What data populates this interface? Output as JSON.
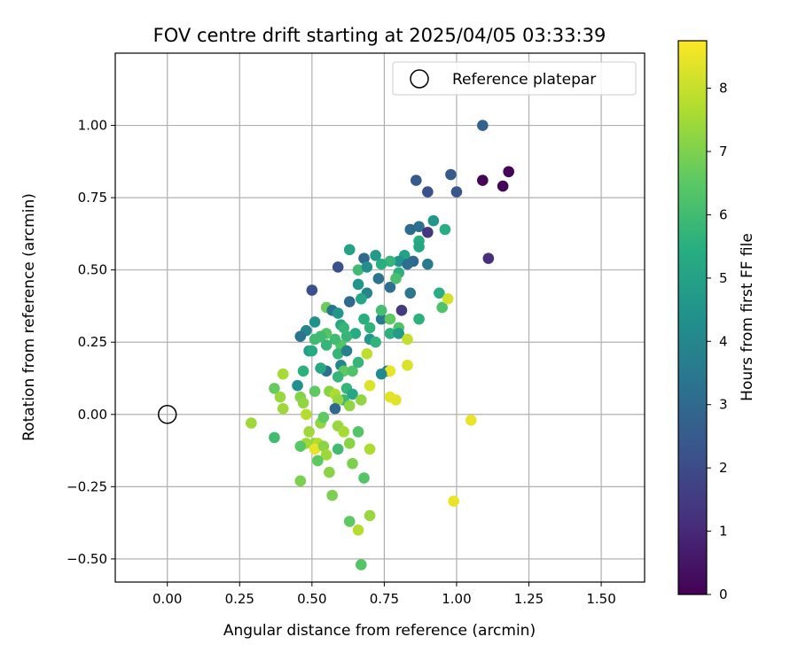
{
  "chart_data": {
    "type": "scatter",
    "title": "FOV centre drift starting at 2025/04/05 03:33:39",
    "xlabel": "Angular distance from reference (arcmin)",
    "ylabel": "Rotation from reference (arcmin)",
    "colorbar_label": "Hours from first FF file",
    "xlim": [
      -0.18,
      1.65
    ],
    "ylim": [
      -0.58,
      1.25
    ],
    "xticks": [
      "0.00",
      "0.25",
      "0.50",
      "0.75",
      "1.00",
      "1.25",
      "1.50"
    ],
    "xtick_values": [
      0,
      0.25,
      0.5,
      0.75,
      1.0,
      1.25,
      1.5
    ],
    "yticks": [
      "−0.50",
      "−0.25",
      "0.00",
      "0.25",
      "0.50",
      "0.75",
      "1.00"
    ],
    "ytick_values": [
      -0.5,
      -0.25,
      0,
      0.25,
      0.5,
      0.75,
      1.0
    ],
    "colorbar_range": [
      0,
      8.75
    ],
    "colorbar_ticks": [
      "0",
      "1",
      "2",
      "3",
      "4",
      "5",
      "6",
      "7",
      "8"
    ],
    "colorbar_tick_values": [
      0,
      1,
      2,
      3,
      4,
      5,
      6,
      7,
      8
    ],
    "colormap": "viridis",
    "grid": true,
    "legend": {
      "placement": "top-right",
      "entry": "Reference platepar"
    },
    "reference_point": {
      "x": 0.0,
      "y": 0.0
    },
    "points": [
      {
        "x": 1.09,
        "y": 1.0,
        "h": 2.8
      },
      {
        "x": 1.09,
        "y": 0.81,
        "h": 0.1
      },
      {
        "x": 1.18,
        "y": 0.84,
        "h": 0.1
      },
      {
        "x": 1.16,
        "y": 0.79,
        "h": 0.1
      },
      {
        "x": 1.11,
        "y": 0.54,
        "h": 1.2
      },
      {
        "x": 0.98,
        "y": 0.83,
        "h": 2.5
      },
      {
        "x": 0.86,
        "y": 0.81,
        "h": 2.5
      },
      {
        "x": 0.9,
        "y": 0.77,
        "h": 2.2
      },
      {
        "x": 1.0,
        "y": 0.77,
        "h": 2.4
      },
      {
        "x": 0.92,
        "y": 0.67,
        "h": 4.6
      },
      {
        "x": 0.96,
        "y": 0.64,
        "h": 5.5
      },
      {
        "x": 0.87,
        "y": 0.65,
        "h": 3.2
      },
      {
        "x": 0.84,
        "y": 0.64,
        "h": 3.1
      },
      {
        "x": 0.9,
        "y": 0.63,
        "h": 1.4
      },
      {
        "x": 0.87,
        "y": 0.6,
        "h": 5.4
      },
      {
        "x": 0.87,
        "y": 0.58,
        "h": 5.2
      },
      {
        "x": 0.82,
        "y": 0.55,
        "h": 5.0
      },
      {
        "x": 0.8,
        "y": 0.53,
        "h": 4.5
      },
      {
        "x": 0.85,
        "y": 0.53,
        "h": 3.0
      },
      {
        "x": 0.83,
        "y": 0.52,
        "h": 3.2
      },
      {
        "x": 0.9,
        "y": 0.52,
        "h": 3.6
      },
      {
        "x": 0.8,
        "y": 0.49,
        "h": 5.6
      },
      {
        "x": 0.77,
        "y": 0.53,
        "h": 5.8
      },
      {
        "x": 0.74,
        "y": 0.52,
        "h": 5.5
      },
      {
        "x": 0.72,
        "y": 0.55,
        "h": 4.8
      },
      {
        "x": 0.68,
        "y": 0.54,
        "h": 3.0
      },
      {
        "x": 0.63,
        "y": 0.57,
        "h": 5.0
      },
      {
        "x": 0.59,
        "y": 0.51,
        "h": 2.2
      },
      {
        "x": 0.66,
        "y": 0.5,
        "h": 6.0
      },
      {
        "x": 0.69,
        "y": 0.51,
        "h": 4.3
      },
      {
        "x": 0.73,
        "y": 0.47,
        "h": 3.4
      },
      {
        "x": 0.77,
        "y": 0.44,
        "h": 3.2
      },
      {
        "x": 0.79,
        "y": 0.47,
        "h": 6.2
      },
      {
        "x": 0.66,
        "y": 0.45,
        "h": 4.6
      },
      {
        "x": 0.69,
        "y": 0.42,
        "h": 4.0
      },
      {
        "x": 0.67,
        "y": 0.4,
        "h": 5.2
      },
      {
        "x": 0.63,
        "y": 0.39,
        "h": 3.0
      },
      {
        "x": 0.5,
        "y": 0.43,
        "h": 2.2
      },
      {
        "x": 0.51,
        "y": 0.32,
        "h": 4.4
      },
      {
        "x": 0.55,
        "y": 0.37,
        "h": 6.8
      },
      {
        "x": 0.57,
        "y": 0.36,
        "h": 3.4
      },
      {
        "x": 0.59,
        "y": 0.35,
        "h": 4.6
      },
      {
        "x": 0.6,
        "y": 0.31,
        "h": 5.3
      },
      {
        "x": 0.61,
        "y": 0.3,
        "h": 5.8
      },
      {
        "x": 0.68,
        "y": 0.33,
        "h": 5.5
      },
      {
        "x": 0.7,
        "y": 0.3,
        "h": 5.7
      },
      {
        "x": 0.74,
        "y": 0.33,
        "h": 3.6
      },
      {
        "x": 0.74,
        "y": 0.36,
        "h": 6.1
      },
      {
        "x": 0.77,
        "y": 0.33,
        "h": 6.6
      },
      {
        "x": 0.8,
        "y": 0.3,
        "h": 6.3
      },
      {
        "x": 0.77,
        "y": 0.28,
        "h": 5.6
      },
      {
        "x": 0.8,
        "y": 0.28,
        "h": 4.8
      },
      {
        "x": 0.81,
        "y": 0.36,
        "h": 1.5
      },
      {
        "x": 0.84,
        "y": 0.42,
        "h": 3.5
      },
      {
        "x": 0.87,
        "y": 0.33,
        "h": 5.6
      },
      {
        "x": 0.94,
        "y": 0.42,
        "h": 5.5
      },
      {
        "x": 0.95,
        "y": 0.37,
        "h": 6.3
      },
      {
        "x": 0.97,
        "y": 0.4,
        "h": 8.2
      },
      {
        "x": 0.83,
        "y": 0.26,
        "h": 8.0
      },
      {
        "x": 0.83,
        "y": 0.17,
        "h": 8.3
      },
      {
        "x": 0.76,
        "y": 0.15,
        "h": 3.6
      },
      {
        "x": 0.77,
        "y": 0.15,
        "h": 8.5
      },
      {
        "x": 0.69,
        "y": 0.21,
        "h": 7.9
      },
      {
        "x": 0.7,
        "y": 0.26,
        "h": 4.6
      },
      {
        "x": 0.72,
        "y": 0.25,
        "h": 5.7
      },
      {
        "x": 0.65,
        "y": 0.28,
        "h": 5.4
      },
      {
        "x": 0.62,
        "y": 0.27,
        "h": 5.8
      },
      {
        "x": 0.6,
        "y": 0.24,
        "h": 6.4
      },
      {
        "x": 0.58,
        "y": 0.26,
        "h": 6.0
      },
      {
        "x": 0.55,
        "y": 0.28,
        "h": 6.4
      },
      {
        "x": 0.53,
        "y": 0.27,
        "h": 6.0
      },
      {
        "x": 0.51,
        "y": 0.26,
        "h": 6.0
      },
      {
        "x": 0.48,
        "y": 0.29,
        "h": 4.0
      },
      {
        "x": 0.46,
        "y": 0.27,
        "h": 3.4
      },
      {
        "x": 0.49,
        "y": 0.22,
        "h": 4.8
      },
      {
        "x": 0.5,
        "y": 0.22,
        "h": 5.4
      },
      {
        "x": 0.55,
        "y": 0.24,
        "h": 5.8
      },
      {
        "x": 0.55,
        "y": 0.15,
        "h": 3.2
      },
      {
        "x": 0.53,
        "y": 0.16,
        "h": 5.3
      },
      {
        "x": 0.59,
        "y": 0.21,
        "h": 5.8
      },
      {
        "x": 0.6,
        "y": 0.17,
        "h": 4.0
      },
      {
        "x": 0.62,
        "y": 0.22,
        "h": 3.8
      },
      {
        "x": 0.61,
        "y": 0.15,
        "h": 6.6
      },
      {
        "x": 0.59,
        "y": 0.13,
        "h": 5.8
      },
      {
        "x": 0.64,
        "y": 0.15,
        "h": 6.3
      },
      {
        "x": 0.66,
        "y": 0.18,
        "h": 5.8
      },
      {
        "x": 0.74,
        "y": 0.14,
        "h": 4.2
      },
      {
        "x": 0.47,
        "y": 0.15,
        "h": 5.6
      },
      {
        "x": 0.45,
        "y": 0.1,
        "h": 4.4
      },
      {
        "x": 0.51,
        "y": 0.08,
        "h": 6.6
      },
      {
        "x": 0.56,
        "y": 0.08,
        "h": 7.2
      },
      {
        "x": 0.58,
        "y": 0.07,
        "h": 7.7
      },
      {
        "x": 0.62,
        "y": 0.09,
        "h": 5.8
      },
      {
        "x": 0.64,
        "y": 0.07,
        "h": 5.2
      },
      {
        "x": 0.61,
        "y": 0.05,
        "h": 5.9
      },
      {
        "x": 0.59,
        "y": 0.05,
        "h": 7.4
      },
      {
        "x": 0.58,
        "y": 0.02,
        "h": 3.0
      },
      {
        "x": 0.63,
        "y": 0.03,
        "h": 7.3
      },
      {
        "x": 0.67,
        "y": 0.05,
        "h": 7.3
      },
      {
        "x": 0.7,
        "y": 0.1,
        "h": 8.3
      },
      {
        "x": 0.77,
        "y": 0.06,
        "h": 8.4
      },
      {
        "x": 0.79,
        "y": 0.05,
        "h": 8.4
      },
      {
        "x": 0.37,
        "y": 0.09,
        "h": 6.7
      },
      {
        "x": 0.4,
        "y": 0.14,
        "h": 7.6
      },
      {
        "x": 0.39,
        "y": 0.06,
        "h": 7.4
      },
      {
        "x": 0.4,
        "y": 0.02,
        "h": 7.5
      },
      {
        "x": 0.46,
        "y": 0.06,
        "h": 7.1
      },
      {
        "x": 0.47,
        "y": 0.04,
        "h": 7.3
      },
      {
        "x": 0.48,
        "y": 0.0,
        "h": 7.8
      },
      {
        "x": 0.29,
        "y": -0.03,
        "h": 7.5
      },
      {
        "x": 0.37,
        "y": -0.08,
        "h": 6.0
      },
      {
        "x": 0.49,
        "y": -0.06,
        "h": 7.5
      },
      {
        "x": 0.53,
        "y": -0.03,
        "h": 7.3
      },
      {
        "x": 0.54,
        "y": -0.01,
        "h": 6.6
      },
      {
        "x": 0.51,
        "y": -0.1,
        "h": 7.2
      },
      {
        "x": 0.48,
        "y": -0.1,
        "h": 7.5
      },
      {
        "x": 0.46,
        "y": -0.11,
        "h": 6.5
      },
      {
        "x": 0.52,
        "y": -0.1,
        "h": 7.8
      },
      {
        "x": 0.51,
        "y": -0.12,
        "h": 8.5
      },
      {
        "x": 0.54,
        "y": -0.11,
        "h": 7.2
      },
      {
        "x": 0.55,
        "y": -0.14,
        "h": 7.5
      },
      {
        "x": 0.52,
        "y": -0.16,
        "h": 6.6
      },
      {
        "x": 0.56,
        "y": -0.2,
        "h": 7.2
      },
      {
        "x": 0.59,
        "y": -0.12,
        "h": 6.0
      },
      {
        "x": 0.59,
        "y": -0.04,
        "h": 7.4
      },
      {
        "x": 0.61,
        "y": -0.06,
        "h": 7.6
      },
      {
        "x": 0.63,
        "y": -0.1,
        "h": 7.2
      },
      {
        "x": 0.66,
        "y": -0.06,
        "h": 6.4
      },
      {
        "x": 0.7,
        "y": -0.12,
        "h": 7.7
      },
      {
        "x": 0.64,
        "y": -0.17,
        "h": 7.0
      },
      {
        "x": 0.68,
        "y": -0.22,
        "h": 6.4
      },
      {
        "x": 0.46,
        "y": -0.23,
        "h": 7.0
      },
      {
        "x": 0.57,
        "y": -0.28,
        "h": 7.0
      },
      {
        "x": 0.63,
        "y": -0.37,
        "h": 6.6
      },
      {
        "x": 0.7,
        "y": -0.35,
        "h": 7.4
      },
      {
        "x": 0.66,
        "y": -0.4,
        "h": 7.8
      },
      {
        "x": 0.67,
        "y": -0.52,
        "h": 6.4
      },
      {
        "x": 1.05,
        "y": -0.02,
        "h": 8.5
      },
      {
        "x": 0.99,
        "y": -0.3,
        "h": 8.5
      }
    ]
  }
}
